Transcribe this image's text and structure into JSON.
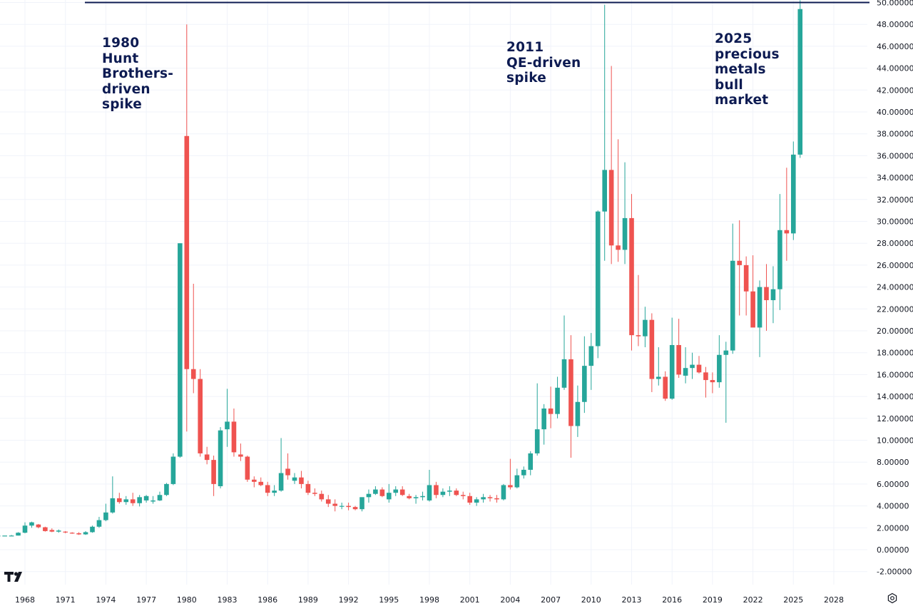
{
  "chart_data": {
    "type": "candlestick",
    "title": "",
    "xlabel": "",
    "ylabel": "",
    "ylim": [
      -3,
      50.2
    ],
    "xlim": [
      1965.6,
      2031.2
    ],
    "y_ticks": [
      -2,
      0,
      2,
      4,
      6,
      8,
      10,
      12,
      14,
      16,
      18,
      20,
      22,
      24,
      26,
      28,
      30,
      32,
      34,
      36,
      38,
      40,
      42,
      44,
      46,
      48,
      50
    ],
    "y_tick_labels": [
      "-2.00000",
      "0.00000",
      "2.00000",
      "4.00000",
      "6.00000",
      "8.00000",
      "10.00000",
      "12.00000",
      "14.00000",
      "16.00000",
      "18.00000",
      "20.00000",
      "22.00000",
      "24.00000",
      "26.00000",
      "28.00000",
      "30.00000",
      "32.00000",
      "34.00000",
      "36.00000",
      "38.00000",
      "40.00000",
      "42.00000",
      "44.00000",
      "46.00000",
      "48.00000",
      "50.00000"
    ],
    "x_ticks": [
      "1968",
      "1971",
      "1974",
      "1977",
      "1980",
      "1983",
      "1986",
      "1989",
      "1992",
      "1995",
      "1998",
      "2001",
      "2004",
      "2007",
      "2010",
      "2013",
      "2016",
      "2019",
      "2022",
      "2025",
      "2028"
    ],
    "horizontal_line": 50.0,
    "grid": true,
    "colors": {
      "up": "#26a69a",
      "down": "#ef5350",
      "line": "#0d1b52",
      "text": "#0d1b52",
      "axis_text": "#131722",
      "grid": "#f0f3fa"
    },
    "annotations": [
      {
        "lines": [
          "1980",
          "Hunt",
          "Brothers-",
          "driven",
          "spike"
        ]
      },
      {
        "lines": [
          "2011",
          "QE-driven",
          "spike"
        ]
      },
      {
        "lines": [
          "2025",
          "precious",
          "metals",
          "bull",
          "market"
        ]
      }
    ],
    "candles": [
      {
        "t": 1966.0,
        "o": 1.29,
        "h": 1.29,
        "l": 1.29,
        "c": 1.29
      },
      {
        "t": 1966.5,
        "o": 1.29,
        "h": 1.29,
        "l": 1.29,
        "c": 1.29
      },
      {
        "t": 1967.0,
        "o": 1.29,
        "h": 1.35,
        "l": 1.29,
        "c": 1.29
      },
      {
        "t": 1967.5,
        "o": 1.29,
        "h": 1.6,
        "l": 1.29,
        "c": 1.55
      },
      {
        "t": 1968.0,
        "o": 1.55,
        "h": 2.5,
        "l": 1.5,
        "c": 2.2
      },
      {
        "t": 1968.5,
        "o": 2.2,
        "h": 2.56,
        "l": 2.0,
        "c": 2.5
      },
      {
        "t": 1969.0,
        "o": 2.3,
        "h": 2.35,
        "l": 1.95,
        "c": 2.05
      },
      {
        "t": 1969.5,
        "o": 2.05,
        "h": 2.1,
        "l": 1.65,
        "c": 1.7
      },
      {
        "t": 1970.0,
        "o": 1.8,
        "h": 1.95,
        "l": 1.6,
        "c": 1.65
      },
      {
        "t": 1970.5,
        "o": 1.65,
        "h": 1.85,
        "l": 1.55,
        "c": 1.75
      },
      {
        "t": 1971.0,
        "o": 1.65,
        "h": 1.7,
        "l": 1.5,
        "c": 1.6
      },
      {
        "t": 1971.5,
        "o": 1.55,
        "h": 1.6,
        "l": 1.45,
        "c": 1.5
      },
      {
        "t": 1972.0,
        "o": 1.5,
        "h": 1.6,
        "l": 1.35,
        "c": 1.4
      },
      {
        "t": 1972.5,
        "o": 1.4,
        "h": 1.7,
        "l": 1.35,
        "c": 1.6
      },
      {
        "t": 1973.0,
        "o": 1.6,
        "h": 2.2,
        "l": 1.55,
        "c": 2.1
      },
      {
        "t": 1973.5,
        "o": 2.1,
        "h": 3.0,
        "l": 2.0,
        "c": 2.7
      },
      {
        "t": 1974.0,
        "o": 2.7,
        "h": 4.2,
        "l": 2.6,
        "c": 3.4
      },
      {
        "t": 1974.5,
        "o": 3.4,
        "h": 6.7,
        "l": 3.3,
        "c": 4.7
      },
      {
        "t": 1975.0,
        "o": 4.7,
        "h": 5.2,
        "l": 4.2,
        "c": 4.35
      },
      {
        "t": 1975.5,
        "o": 4.35,
        "h": 4.9,
        "l": 4.1,
        "c": 4.6
      },
      {
        "t": 1976.0,
        "o": 4.6,
        "h": 5.2,
        "l": 4.0,
        "c": 4.25
      },
      {
        "t": 1976.5,
        "o": 4.25,
        "h": 5.0,
        "l": 3.95,
        "c": 4.8
      },
      {
        "t": 1977.0,
        "o": 4.5,
        "h": 5.0,
        "l": 4.3,
        "c": 4.9
      },
      {
        "t": 1977.5,
        "o": 4.4,
        "h": 4.9,
        "l": 4.2,
        "c": 4.5
      },
      {
        "t": 1978.0,
        "o": 4.5,
        "h": 5.3,
        "l": 4.45,
        "c": 5.0
      },
      {
        "t": 1978.5,
        "o": 5.0,
        "h": 6.1,
        "l": 4.9,
        "c": 6.0
      },
      {
        "t": 1979.0,
        "o": 6.0,
        "h": 8.8,
        "l": 5.9,
        "c": 8.5
      },
      {
        "t": 1979.5,
        "o": 8.5,
        "h": 28.0,
        "l": 8.4,
        "c": 28.0
      },
      {
        "t": 1980.0,
        "o": 37.8,
        "h": 48.0,
        "l": 10.8,
        "c": 16.5
      },
      {
        "t": 1980.5,
        "o": 16.5,
        "h": 24.3,
        "l": 14.3,
        "c": 15.6
      },
      {
        "t": 1981.0,
        "o": 15.6,
        "h": 16.5,
        "l": 8.5,
        "c": 8.8
      },
      {
        "t": 1981.5,
        "o": 8.7,
        "h": 9.4,
        "l": 7.8,
        "c": 8.2
      },
      {
        "t": 1982.0,
        "o": 8.2,
        "h": 8.6,
        "l": 4.9,
        "c": 6.0
      },
      {
        "t": 1982.5,
        "o": 5.8,
        "h": 11.2,
        "l": 5.6,
        "c": 10.9
      },
      {
        "t": 1983.0,
        "o": 11.0,
        "h": 14.7,
        "l": 9.4,
        "c": 11.7
      },
      {
        "t": 1983.5,
        "o": 11.7,
        "h": 12.9,
        "l": 8.5,
        "c": 8.9
      },
      {
        "t": 1984.0,
        "o": 8.7,
        "h": 9.7,
        "l": 8.1,
        "c": 8.5
      },
      {
        "t": 1984.5,
        "o": 8.5,
        "h": 8.6,
        "l": 6.2,
        "c": 6.4
      },
      {
        "t": 1985.0,
        "o": 6.4,
        "h": 6.7,
        "l": 5.7,
        "c": 6.2
      },
      {
        "t": 1985.5,
        "o": 6.2,
        "h": 6.6,
        "l": 5.8,
        "c": 5.9
      },
      {
        "t": 1986.0,
        "o": 5.9,
        "h": 6.2,
        "l": 4.9,
        "c": 5.2
      },
      {
        "t": 1986.5,
        "o": 5.2,
        "h": 5.9,
        "l": 4.9,
        "c": 5.4
      },
      {
        "t": 1987.0,
        "o": 5.4,
        "h": 10.2,
        "l": 5.3,
        "c": 7.0
      },
      {
        "t": 1987.5,
        "o": 7.4,
        "h": 8.8,
        "l": 6.4,
        "c": 6.8
      },
      {
        "t": 1988.0,
        "o": 6.3,
        "h": 7.0,
        "l": 6.0,
        "c": 6.6
      },
      {
        "t": 1988.5,
        "o": 6.6,
        "h": 7.2,
        "l": 5.6,
        "c": 6.0
      },
      {
        "t": 1989.0,
        "o": 6.0,
        "h": 6.3,
        "l": 5.0,
        "c": 5.2
      },
      {
        "t": 1989.5,
        "o": 5.2,
        "h": 5.6,
        "l": 4.9,
        "c": 5.1
      },
      {
        "t": 1990.0,
        "o": 5.1,
        "h": 5.4,
        "l": 4.4,
        "c": 4.6
      },
      {
        "t": 1990.5,
        "o": 4.6,
        "h": 5.0,
        "l": 3.9,
        "c": 4.2
      },
      {
        "t": 1991.0,
        "o": 4.2,
        "h": 4.6,
        "l": 3.5,
        "c": 4.0
      },
      {
        "t": 1991.5,
        "o": 4.0,
        "h": 4.3,
        "l": 3.7,
        "c": 4.0
      },
      {
        "t": 1992.0,
        "o": 4.0,
        "h": 4.3,
        "l": 3.6,
        "c": 3.9
      },
      {
        "t": 1992.5,
        "o": 3.9,
        "h": 4.0,
        "l": 3.6,
        "c": 3.7
      },
      {
        "t": 1993.0,
        "o": 3.7,
        "h": 4.8,
        "l": 3.5,
        "c": 4.8
      },
      {
        "t": 1993.5,
        "o": 4.8,
        "h": 5.5,
        "l": 4.3,
        "c": 5.1
      },
      {
        "t": 1994.0,
        "o": 5.1,
        "h": 5.8,
        "l": 5.0,
        "c": 5.5
      },
      {
        "t": 1994.5,
        "o": 5.5,
        "h": 5.7,
        "l": 4.8,
        "c": 4.9
      },
      {
        "t": 1995.0,
        "o": 4.6,
        "h": 6.0,
        "l": 4.3,
        "c": 5.2
      },
      {
        "t": 1995.5,
        "o": 5.2,
        "h": 5.8,
        "l": 4.9,
        "c": 5.5
      },
      {
        "t": 1996.0,
        "o": 5.5,
        "h": 5.8,
        "l": 4.9,
        "c": 5.0
      },
      {
        "t": 1996.5,
        "o": 4.9,
        "h": 5.1,
        "l": 4.6,
        "c": 4.7
      },
      {
        "t": 1997.0,
        "o": 4.7,
        "h": 5.0,
        "l": 4.2,
        "c": 4.8
      },
      {
        "t": 1997.5,
        "o": 4.8,
        "h": 5.3,
        "l": 4.5,
        "c": 4.9
      },
      {
        "t": 1998.0,
        "o": 4.5,
        "h": 7.3,
        "l": 4.4,
        "c": 5.9
      },
      {
        "t": 1998.5,
        "o": 5.9,
        "h": 6.2,
        "l": 4.7,
        "c": 5.0
      },
      {
        "t": 1999.0,
        "o": 5.0,
        "h": 5.6,
        "l": 4.8,
        "c": 5.3
      },
      {
        "t": 1999.5,
        "o": 5.3,
        "h": 5.8,
        "l": 4.9,
        "c": 5.4
      },
      {
        "t": 2000.0,
        "o": 5.4,
        "h": 5.6,
        "l": 4.9,
        "c": 5.0
      },
      {
        "t": 2000.5,
        "o": 5.0,
        "h": 5.3,
        "l": 4.6,
        "c": 4.9
      },
      {
        "t": 2001.0,
        "o": 4.9,
        "h": 5.2,
        "l": 4.1,
        "c": 4.3
      },
      {
        "t": 2001.5,
        "o": 4.3,
        "h": 4.8,
        "l": 4.0,
        "c": 4.6
      },
      {
        "t": 2002.0,
        "o": 4.6,
        "h": 5.1,
        "l": 4.3,
        "c": 4.8
      },
      {
        "t": 2002.5,
        "o": 4.8,
        "h": 5.0,
        "l": 4.4,
        "c": 4.7
      },
      {
        "t": 2003.0,
        "o": 4.7,
        "h": 5.0,
        "l": 4.3,
        "c": 4.6
      },
      {
        "t": 2003.5,
        "o": 4.6,
        "h": 6.0,
        "l": 4.5,
        "c": 5.9
      },
      {
        "t": 2004.0,
        "o": 5.9,
        "h": 8.3,
        "l": 5.5,
        "c": 5.7
      },
      {
        "t": 2004.5,
        "o": 5.7,
        "h": 7.4,
        "l": 5.6,
        "c": 6.8
      },
      {
        "t": 2005.0,
        "o": 6.8,
        "h": 7.6,
        "l": 6.5,
        "c": 7.3
      },
      {
        "t": 2005.5,
        "o": 7.3,
        "h": 9.0,
        "l": 6.8,
        "c": 8.8
      },
      {
        "t": 2006.0,
        "o": 8.8,
        "h": 15.2,
        "l": 8.6,
        "c": 11.0
      },
      {
        "t": 2006.5,
        "o": 11.0,
        "h": 13.3,
        "l": 9.6,
        "c": 12.9
      },
      {
        "t": 2007.0,
        "o": 12.9,
        "h": 14.9,
        "l": 11.1,
        "c": 12.4
      },
      {
        "t": 2007.5,
        "o": 12.4,
        "h": 15.8,
        "l": 12.0,
        "c": 14.8
      },
      {
        "t": 2008.0,
        "o": 14.8,
        "h": 21.4,
        "l": 14.6,
        "c": 17.4
      },
      {
        "t": 2008.5,
        "o": 17.4,
        "h": 19.6,
        "l": 8.4,
        "c": 11.3
      },
      {
        "t": 2009.0,
        "o": 11.3,
        "h": 15.0,
        "l": 10.3,
        "c": 13.5
      },
      {
        "t": 2009.5,
        "o": 13.5,
        "h": 19.5,
        "l": 12.5,
        "c": 16.8
      },
      {
        "t": 2010.0,
        "o": 16.8,
        "h": 19.8,
        "l": 14.6,
        "c": 18.6
      },
      {
        "t": 2010.5,
        "o": 18.6,
        "h": 31.0,
        "l": 17.5,
        "c": 30.9
      },
      {
        "t": 2011.0,
        "o": 30.9,
        "h": 49.8,
        "l": 26.4,
        "c": 34.7
      },
      {
        "t": 2011.5,
        "o": 34.7,
        "h": 44.2,
        "l": 26.1,
        "c": 27.8
      },
      {
        "t": 2012.0,
        "o": 27.8,
        "h": 37.5,
        "l": 26.3,
        "c": 27.4
      },
      {
        "t": 2012.5,
        "o": 27.4,
        "h": 35.4,
        "l": 26.1,
        "c": 30.3
      },
      {
        "t": 2013.0,
        "o": 30.3,
        "h": 32.5,
        "l": 18.2,
        "c": 19.6
      },
      {
        "t": 2013.5,
        "o": 19.6,
        "h": 25.1,
        "l": 18.6,
        "c": 19.5
      },
      {
        "t": 2014.0,
        "o": 19.5,
        "h": 22.2,
        "l": 18.5,
        "c": 21.0
      },
      {
        "t": 2014.5,
        "o": 21.0,
        "h": 21.6,
        "l": 14.4,
        "c": 15.6
      },
      {
        "t": 2015.0,
        "o": 15.6,
        "h": 18.5,
        "l": 15.0,
        "c": 15.8
      },
      {
        "t": 2015.5,
        "o": 15.8,
        "h": 16.3,
        "l": 13.6,
        "c": 13.8
      },
      {
        "t": 2016.0,
        "o": 13.8,
        "h": 21.2,
        "l": 13.7,
        "c": 18.7
      },
      {
        "t": 2016.5,
        "o": 18.7,
        "h": 21.1,
        "l": 15.7,
        "c": 16.0
      },
      {
        "t": 2017.0,
        "o": 15.9,
        "h": 18.5,
        "l": 15.2,
        "c": 16.6
      },
      {
        "t": 2017.5,
        "o": 16.6,
        "h": 18.0,
        "l": 15.6,
        "c": 16.9
      },
      {
        "t": 2018.0,
        "o": 16.9,
        "h": 17.7,
        "l": 16.1,
        "c": 16.2
      },
      {
        "t": 2018.5,
        "o": 16.2,
        "h": 16.7,
        "l": 13.9,
        "c": 15.5
      },
      {
        "t": 2019.0,
        "o": 15.5,
        "h": 16.2,
        "l": 14.3,
        "c": 15.3
      },
      {
        "t": 2019.5,
        "o": 15.3,
        "h": 19.6,
        "l": 14.8,
        "c": 17.8
      },
      {
        "t": 2020.0,
        "o": 17.8,
        "h": 19.0,
        "l": 11.6,
        "c": 18.2
      },
      {
        "t": 2020.5,
        "o": 18.2,
        "h": 29.8,
        "l": 17.9,
        "c": 26.4
      },
      {
        "t": 2021.0,
        "o": 26.4,
        "h": 30.1,
        "l": 21.4,
        "c": 26.0
      },
      {
        "t": 2021.5,
        "o": 26.0,
        "h": 26.8,
        "l": 21.4,
        "c": 23.6
      },
      {
        "t": 2022.0,
        "o": 23.6,
        "h": 26.9,
        "l": 20.5,
        "c": 20.3
      },
      {
        "t": 2022.5,
        "o": 20.3,
        "h": 24.6,
        "l": 17.6,
        "c": 24.0
      },
      {
        "t": 2023.0,
        "o": 24.0,
        "h": 26.1,
        "l": 20.0,
        "c": 22.8
      },
      {
        "t": 2023.5,
        "o": 22.8,
        "h": 25.9,
        "l": 20.7,
        "c": 23.8
      },
      {
        "t": 2024.0,
        "o": 23.8,
        "h": 32.5,
        "l": 21.9,
        "c": 29.2
      },
      {
        "t": 2024.5,
        "o": 29.2,
        "h": 34.9,
        "l": 26.4,
        "c": 28.9
      },
      {
        "t": 2025.0,
        "o": 28.9,
        "h": 37.3,
        "l": 28.3,
        "c": 36.1
      },
      {
        "t": 2025.5,
        "o": 36.1,
        "h": 50.2,
        "l": 35.8,
        "c": 49.4
      }
    ]
  },
  "branding": {
    "logo_text": "TradingView",
    "settings_icon": "gear-icon"
  }
}
